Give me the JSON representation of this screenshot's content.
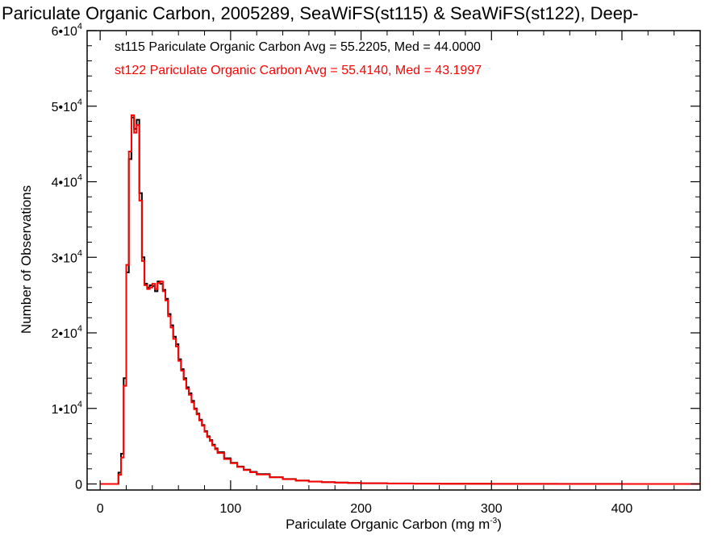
{
  "chart_data": {
    "type": "line",
    "title": "Pariculate Organic Carbon, 2005289, SeaWiFS(st115) & SeaWiFS(st122), Deep-",
    "xlabel": "Pariculate Organic Carbon (mg m",
    "xlabel_sup": "-3",
    "xlabel_suffix": ")",
    "ylabel": "Number of Observations",
    "xlim": [
      -10,
      460
    ],
    "ylim": [
      -800,
      60000
    ],
    "x_ticks": [
      0,
      100,
      200,
      300,
      400
    ],
    "x_tick_labels": [
      "0",
      "100",
      "200",
      "300",
      "400"
    ],
    "y_ticks": [
      0,
      10000,
      20000,
      30000,
      40000,
      50000,
      60000
    ],
    "y_tick_labels": [
      {
        "base": "0",
        "exp": ""
      },
      {
        "base": "1•10",
        "exp": "4"
      },
      {
        "base": "2•10",
        "exp": "4"
      },
      {
        "base": "3•10",
        "exp": "4"
      },
      {
        "base": "4•10",
        "exp": "4"
      },
      {
        "base": "5•10",
        "exp": "4"
      },
      {
        "base": "6•10",
        "exp": "4"
      }
    ],
    "grid": false,
    "legend_position": "top-left",
    "series": [
      {
        "name": "st115",
        "label": "st115 Pariculate Organic Carbon Avg = 55.2205, Med = 44.0000",
        "color": "#000000",
        "x": [
          0,
          12,
          14,
          16,
          18,
          20,
          22,
          24,
          26,
          28,
          30,
          32,
          34,
          36,
          38,
          40,
          42,
          44,
          46,
          48,
          50,
          52,
          54,
          56,
          58,
          60,
          62,
          64,
          66,
          68,
          70,
          72,
          74,
          76,
          78,
          80,
          82,
          84,
          86,
          88,
          90,
          95,
          100,
          105,
          110,
          115,
          120,
          130,
          140,
          150,
          160,
          170,
          180,
          190,
          200,
          220,
          240,
          260,
          300,
          350,
          400,
          460
        ],
        "y": [
          0,
          0,
          1500,
          4000,
          14000,
          28000,
          43000,
          48500,
          47000,
          48200,
          38500,
          30000,
          26500,
          26000,
          26300,
          26200,
          25500,
          26800,
          26500,
          25700,
          24500,
          22500,
          21000,
          19500,
          18500,
          16500,
          15200,
          14000,
          12800,
          12000,
          11000,
          10000,
          9300,
          8500,
          7800,
          7000,
          6300,
          5800,
          5200,
          4700,
          4200,
          3400,
          2800,
          2300,
          1900,
          1600,
          1300,
          900,
          650,
          450,
          320,
          240,
          180,
          130,
          100,
          60,
          40,
          25,
          12,
          6,
          3,
          0
        ]
      },
      {
        "name": "st122",
        "label": "st122 Pariculate Organic Carbon Avg = 55.4140, Med = 43.1997",
        "color": "#ff0000",
        "x": [
          0,
          12,
          14,
          16,
          18,
          20,
          22,
          24,
          26,
          28,
          30,
          32,
          34,
          36,
          38,
          40,
          42,
          44,
          46,
          48,
          50,
          52,
          54,
          56,
          58,
          60,
          62,
          64,
          66,
          68,
          70,
          72,
          74,
          76,
          78,
          80,
          82,
          84,
          86,
          88,
          90,
          95,
          100,
          105,
          110,
          115,
          120,
          130,
          140,
          150,
          160,
          170,
          180,
          190,
          200,
          220,
          240,
          260,
          300,
          350,
          400,
          460
        ],
        "y": [
          0,
          0,
          1200,
          3500,
          13000,
          29000,
          44000,
          48800,
          46500,
          47500,
          37500,
          29500,
          26300,
          25800,
          26000,
          26500,
          25800,
          26600,
          26800,
          25500,
          24300,
          22200,
          20700,
          19200,
          18200,
          16300,
          15000,
          13800,
          12600,
          11800,
          10800,
          9900,
          9200,
          8400,
          7700,
          6900,
          6200,
          5700,
          5100,
          4600,
          4100,
          3300,
          2750,
          2250,
          1850,
          1550,
          1250,
          880,
          630,
          440,
          310,
          230,
          170,
          125,
          95,
          55,
          38,
          22,
          11,
          5,
          2,
          0
        ]
      }
    ]
  }
}
